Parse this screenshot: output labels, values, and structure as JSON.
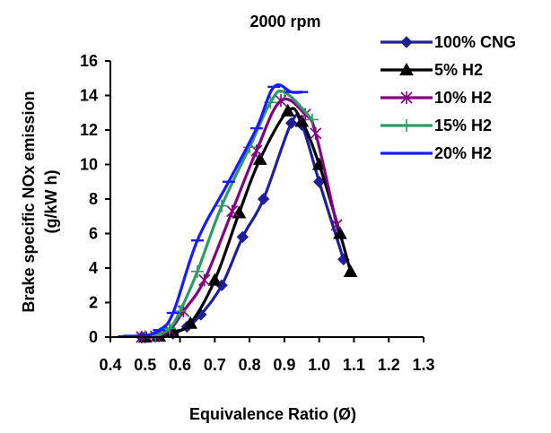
{
  "chart_data": {
    "type": "line",
    "title": "2000 rpm",
    "xlabel": "Equivalence Ratio (Ø)",
    "ylabel_line1": "Brake specific NOx emission",
    "ylabel_line2": "(g/kW h)",
    "xlim": [
      0.4,
      1.3
    ],
    "ylim": [
      0,
      16
    ],
    "x_ticks": [
      "0.4",
      "0.5",
      "0.6",
      "0.7",
      "0.8",
      "0.9",
      "1.0",
      "1.1",
      "1.2",
      "1.3"
    ],
    "y_ticks": [
      "0",
      "2",
      "4",
      "6",
      "8",
      "10",
      "12",
      "14",
      "16"
    ],
    "grid": false,
    "legend_position": "top-right",
    "series": [
      {
        "name": "100% CNG",
        "color": "#1f1f9a",
        "marker": "diamond",
        "points": [
          [
            0.49,
            0.0
          ],
          [
            0.54,
            0.05
          ],
          [
            0.58,
            0.2
          ],
          [
            0.62,
            0.6
          ],
          [
            0.66,
            1.3
          ],
          [
            0.72,
            3.0
          ],
          [
            0.78,
            5.8
          ],
          [
            0.84,
            8.0
          ],
          [
            0.92,
            12.4
          ],
          [
            0.95,
            12.3
          ],
          [
            1.0,
            9.0
          ],
          [
            1.07,
            4.5
          ]
        ]
      },
      {
        "name": "5% H2",
        "color": "#000000",
        "marker": "triangle",
        "points": [
          [
            0.5,
            0.0
          ],
          [
            0.54,
            0.05
          ],
          [
            0.58,
            0.3
          ],
          [
            0.63,
            0.8
          ],
          [
            0.7,
            3.3
          ],
          [
            0.77,
            7.2
          ],
          [
            0.83,
            10.3
          ],
          [
            0.91,
            13.1
          ],
          [
            0.95,
            12.5
          ],
          [
            1.0,
            10.0
          ],
          [
            1.06,
            6.0
          ],
          [
            1.09,
            3.8
          ]
        ]
      },
      {
        "name": "10% H2",
        "color": "#800080",
        "marker": "star",
        "points": [
          [
            0.49,
            0.0
          ],
          [
            0.53,
            0.05
          ],
          [
            0.57,
            0.4
          ],
          [
            0.61,
            1.5
          ],
          [
            0.67,
            3.3
          ],
          [
            0.75,
            7.3
          ],
          [
            0.82,
            10.8
          ],
          [
            0.89,
            13.7
          ],
          [
            0.96,
            12.9
          ],
          [
            0.99,
            11.8
          ],
          [
            1.05,
            6.5
          ]
        ]
      },
      {
        "name": "15% H2",
        "color": "#2e9a64",
        "marker": "plus",
        "points": [
          [
            0.5,
            0.0
          ],
          [
            0.53,
            0.1
          ],
          [
            0.57,
            0.5
          ],
          [
            0.6,
            1.5
          ],
          [
            0.65,
            3.8
          ],
          [
            0.72,
            7.6
          ],
          [
            0.8,
            11.0
          ],
          [
            0.86,
            13.6
          ],
          [
            0.9,
            14.2
          ],
          [
            0.98,
            12.6
          ]
        ]
      },
      {
        "name": "20% H2",
        "color": "#1a1aff",
        "marker": "dash",
        "points": [
          [
            0.44,
            0.05
          ],
          [
            0.5,
            0.1
          ],
          [
            0.54,
            0.4
          ],
          [
            0.58,
            1.4
          ],
          [
            0.65,
            5.6
          ],
          [
            0.74,
            9.0
          ],
          [
            0.82,
            12.1
          ],
          [
            0.87,
            14.5
          ],
          [
            0.92,
            14.2
          ],
          [
            0.95,
            14.2
          ]
        ]
      }
    ]
  }
}
